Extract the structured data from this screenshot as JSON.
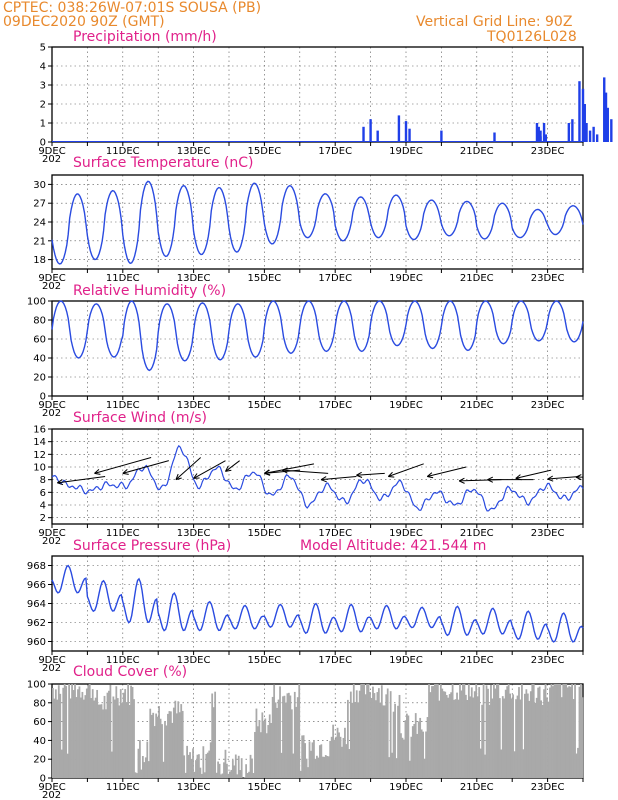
{
  "header": {
    "left_line1": "CPTEC:   038:26W-07:01S   SOUSA (PB)",
    "left_line2": "09DEC2020 90Z (GMT)",
    "right_line1": "Vertical Grid Line: 90Z",
    "right_line2": "TQ0126L028"
  },
  "colors": {
    "header": "#e8892d",
    "title": "#e0218a",
    "line": "#2a4be0",
    "bar": "#1f3fe8",
    "cloud": "#a9a9a9"
  },
  "x_ticks": [
    "9DEC",
    "11DEC",
    "13DEC",
    "15DEC",
    "17DEC",
    "19DEC",
    "21DEC",
    "23DEC"
  ],
  "x_sub": "202",
  "panels": [
    {
      "title": "Precipitation (mm/h)",
      "yticks": [
        "0",
        "1",
        "2",
        "3",
        "4",
        "5"
      ]
    },
    {
      "title": "Surface Temperature (nC)",
      "yticks": [
        "18",
        "21",
        "24",
        "27",
        "30"
      ]
    },
    {
      "title": "Relative Humidity (%)",
      "yticks": [
        "0",
        "20",
        "40",
        "60",
        "80",
        "100"
      ]
    },
    {
      "title": "Surface Wind (m/s)",
      "yticks": [
        "2",
        "4",
        "6",
        "8",
        "10",
        "12",
        "14",
        "16"
      ]
    },
    {
      "title": "Surface Pressure (hPa)",
      "extra": "Model Altitude: 421.544 m",
      "yticks": [
        "960",
        "962",
        "964",
        "966",
        "968"
      ]
    },
    {
      "title": "Cloud Cover (%)",
      "yticks": [
        "0",
        "20",
        "40",
        "60",
        "80",
        "100"
      ]
    }
  ],
  "chart_data": [
    {
      "type": "bar",
      "title": "Precipitation (mm/h)",
      "x_range_days": [
        "9DEC",
        "24DEC"
      ],
      "ylim": [
        0,
        5
      ],
      "values_day_offset": [
        [
          8.8,
          0.8
        ],
        [
          9.0,
          1.2
        ],
        [
          9.2,
          0.6
        ],
        [
          9.8,
          1.4
        ],
        [
          10.0,
          1.1
        ],
        [
          10.1,
          0.7
        ],
        [
          11.0,
          0.6
        ],
        [
          12.5,
          0.5
        ],
        [
          13.7,
          1.0
        ],
        [
          13.8,
          0.6
        ],
        [
          14.6,
          1.0
        ],
        [
          14.7,
          1.2
        ],
        [
          13.8,
          0.3
        ],
        [
          13.9,
          1.0
        ],
        [
          13.95,
          0.4
        ],
        [
          13.75,
          0.8
        ],
        [
          14.9,
          3.2
        ],
        [
          15.0,
          2.8
        ],
        [
          15.05,
          2.0
        ],
        [
          15.1,
          1.0
        ],
        [
          15.2,
          0.6
        ],
        [
          15.3,
          0.8
        ],
        [
          15.4,
          0.4
        ],
        [
          15.6,
          3.4
        ],
        [
          15.65,
          2.6
        ],
        [
          15.7,
          1.8
        ],
        [
          15.8,
          1.2
        ]
      ],
      "grid": true
    },
    {
      "type": "line",
      "title": "Surface Temperature (nC)",
      "ylim": [
        16.5,
        31.5
      ],
      "daily_max": [
        28.5,
        29.0,
        30.5,
        29.8,
        29.5,
        30.2,
        29.8,
        28.5,
        28.0,
        28.3,
        27.5,
        27.3,
        27.0,
        26.0,
        26.6
      ],
      "daily_min": [
        17.3,
        18.0,
        17.4,
        18.5,
        18.8,
        19.2,
        20.5,
        21.5,
        21.0,
        21.5,
        21.2,
        21.8,
        21.3,
        21.5,
        22.0
      ],
      "grid": true
    },
    {
      "type": "line",
      "title": "Relative Humidity (%)",
      "ylim": [
        0,
        100
      ],
      "daily_max": [
        100,
        97,
        100,
        97,
        98,
        97,
        100,
        100,
        100,
        100,
        100,
        100,
        100,
        100,
        100
      ],
      "daily_min": [
        40,
        41,
        27,
        37,
        38,
        41,
        45,
        47,
        47,
        53,
        50,
        48,
        55,
        58,
        57
      ],
      "grid": true
    },
    {
      "type": "line",
      "title": "Surface Wind (m/s)",
      "ylim": [
        1,
        16
      ],
      "values": [
        8.5,
        7.0,
        6.2,
        7.2,
        7.0,
        10.0,
        6.5,
        13.0,
        7.0,
        9.8,
        6.5,
        9.2,
        5.5,
        8.5,
        4.0,
        7.0,
        4.5,
        8.0,
        5.0,
        7.5,
        3.5,
        6.0,
        4.0,
        6.5,
        3.2,
        6.5,
        4.5,
        7.0,
        5.0,
        6.8
      ],
      "grid": true
    },
    {
      "type": "line",
      "title": "Surface Pressure (hPa)",
      "ylim": [
        959,
        969
      ],
      "daily_max": [
        968.0,
        966.4,
        966.6,
        965.1,
        964.2,
        963.8,
        963.9,
        964.0,
        963.9,
        963.8,
        963.6,
        963.7,
        963.5,
        963.2,
        963.0
      ],
      "daily_min": [
        964.5,
        962.5,
        961.0,
        960.3,
        960.5,
        960.8,
        961.0,
        960.2,
        960.4,
        960.8,
        961.0,
        960.0,
        960.2,
        959.6,
        959.3
      ],
      "grid": true
    },
    {
      "type": "area",
      "title": "Cloud Cover (%)",
      "ylim": [
        0,
        100
      ],
      "grid": true
    }
  ]
}
